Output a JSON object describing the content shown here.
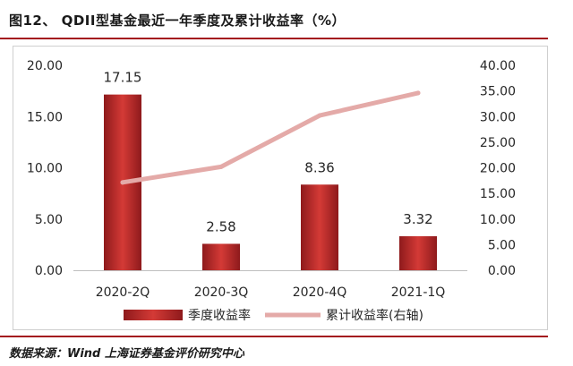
{
  "figure": {
    "title": "图12、 QDII型基金最近一年季度及累计收益率（%）",
    "source": "数据来源：Wind 上海证券基金评价研究中心"
  },
  "colors": {
    "bar_dark": "#8e1a1c",
    "bar_light": "#d43a36",
    "line": "#e4aaa8",
    "rule": "#a3161e",
    "axis_text": "#262626"
  },
  "chart_data": {
    "type": "bar",
    "categories": [
      "2020-2Q",
      "2020-3Q",
      "2020-4Q",
      "2021-1Q"
    ],
    "series": [
      {
        "name": "季度收益率",
        "type": "bar",
        "axis": "left",
        "values": [
          17.15,
          2.58,
          8.36,
          3.32
        ]
      },
      {
        "name": "累计收益率(右轴)",
        "type": "line",
        "axis": "right",
        "values": [
          17.15,
          20.2,
          30.2,
          34.6
        ]
      }
    ],
    "data_labels": [
      "17.15",
      "2.58",
      "8.36",
      "3.32"
    ],
    "y_left": {
      "min": 0,
      "max": 20,
      "ticks": [
        "0.00",
        "5.00",
        "10.00",
        "15.00",
        "20.00"
      ]
    },
    "y_right": {
      "min": 0,
      "max": 40,
      "ticks": [
        "0.00",
        "5.00",
        "10.00",
        "15.00",
        "20.00",
        "25.00",
        "30.00",
        "35.00",
        "40.00"
      ]
    },
    "grid": false,
    "legend_position": "bottom"
  }
}
